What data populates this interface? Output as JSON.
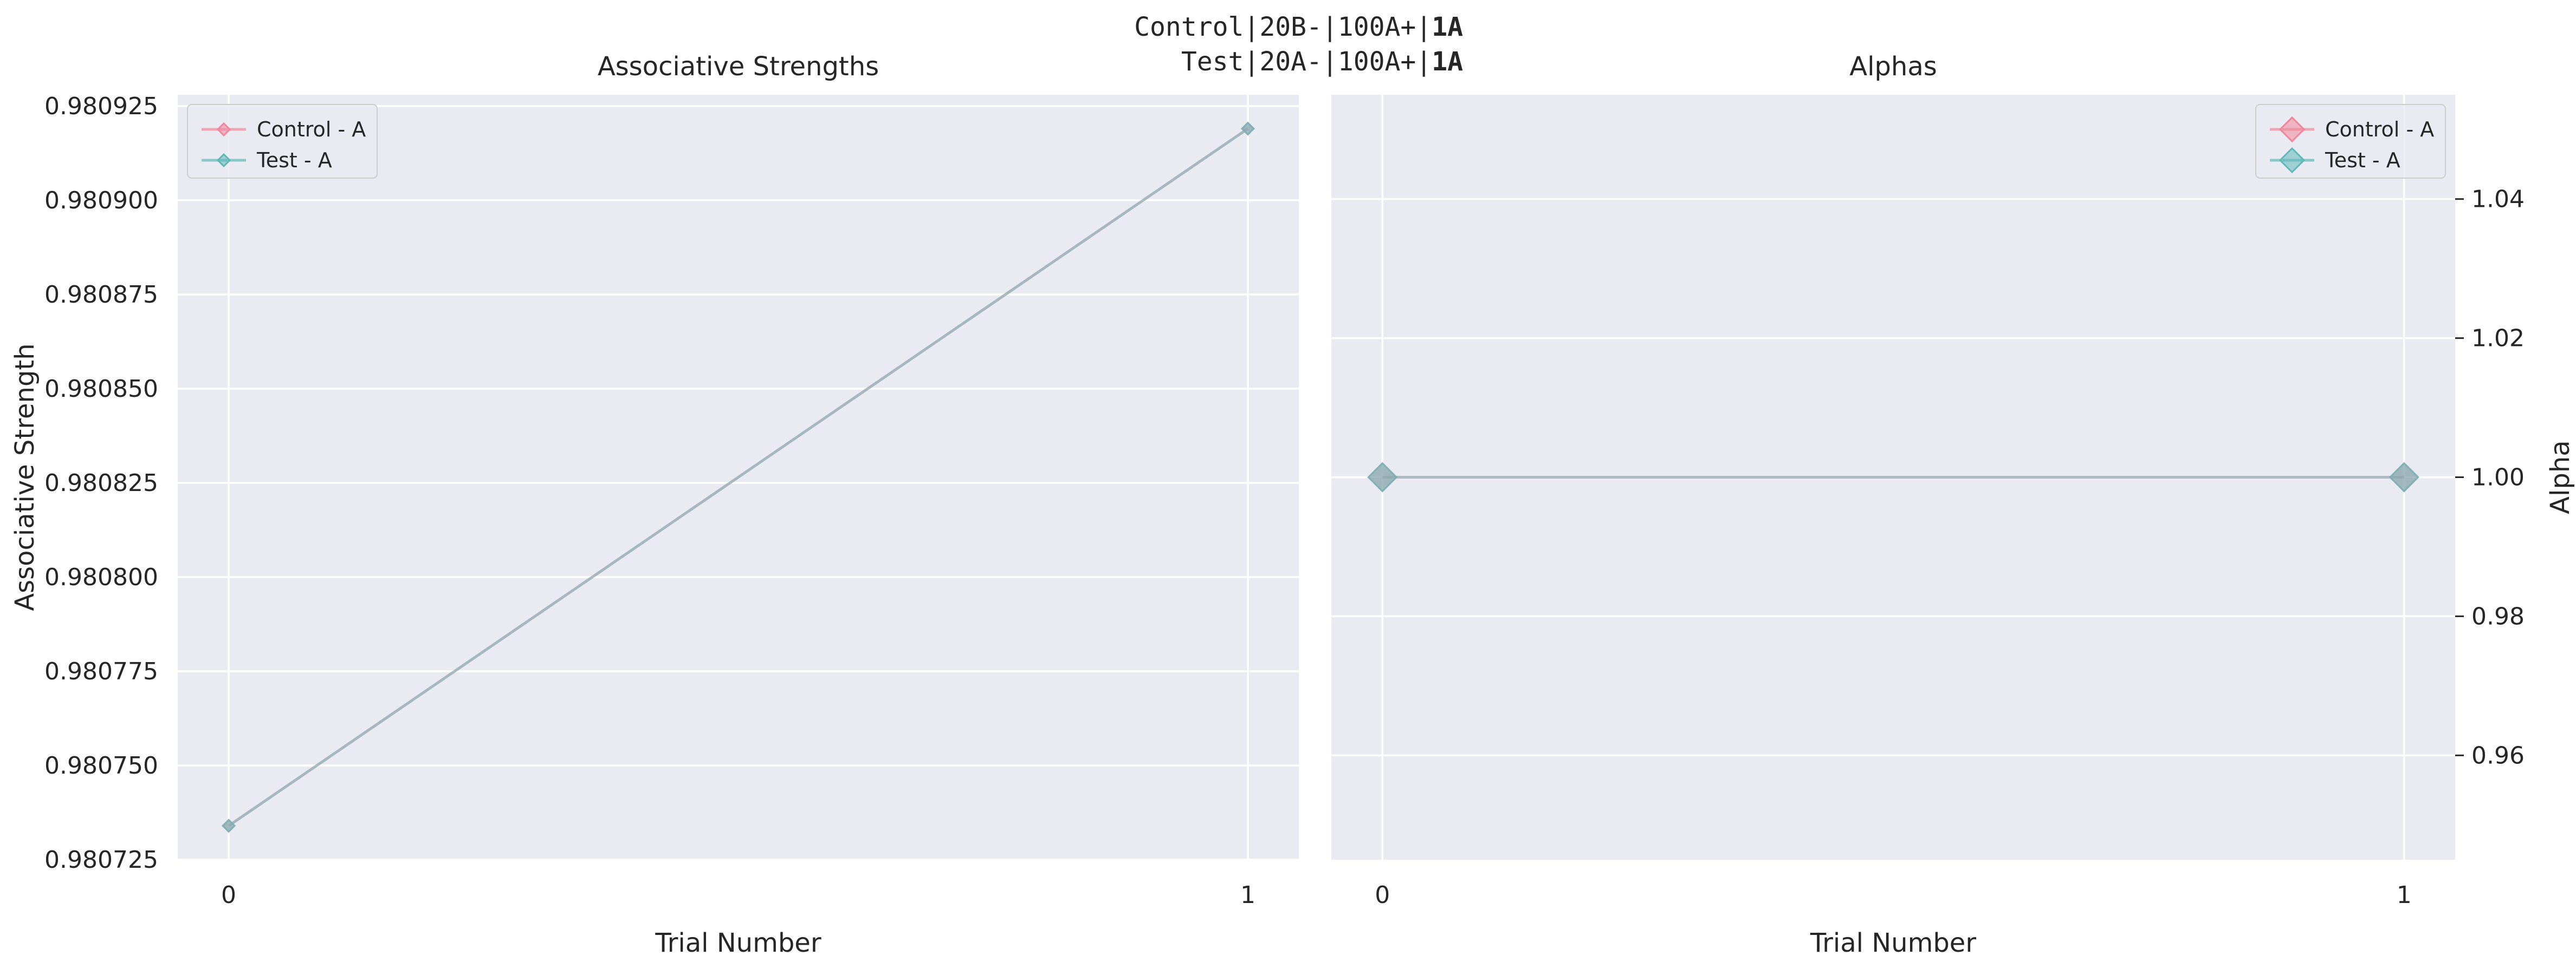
{
  "figure": {
    "suptitle_lines": [
      {
        "text": "Control|20B-|100A+|",
        "bold": "1A"
      },
      {
        "text": "Test|20A-|100A+|",
        "bold": "1A"
      }
    ]
  },
  "chart_data": [
    {
      "type": "line",
      "title": "Associative Strengths",
      "xlabel": "Trial Number",
      "ylabel": "Associative Strength",
      "x": [
        0,
        1
      ],
      "xticks": [
        "0",
        "1"
      ],
      "xlim": [
        -0.05,
        1.05
      ],
      "ylim": [
        0.980725,
        0.980928
      ],
      "yticks": [
        "0.980725",
        "0.980750",
        "0.980775",
        "0.980800",
        "0.980825",
        "0.980850",
        "0.980875",
        "0.980900",
        "0.980925"
      ],
      "yaxis_side": "left",
      "grid": true,
      "legend_position": "upper-left",
      "marker_size": "small",
      "series": [
        {
          "name": "Control - A",
          "values": [
            0.980734,
            0.980919
          ],
          "color": "#f0869a"
        },
        {
          "name": "Test - A",
          "values": [
            0.980734,
            0.980919
          ],
          "color": "#5fb8b8"
        }
      ],
      "overlap_line_color": "#8fa8ad"
    },
    {
      "type": "line",
      "title": "Alphas",
      "xlabel": "Trial Number",
      "ylabel": "Alpha",
      "x": [
        0,
        1
      ],
      "xticks": [
        "0",
        "1"
      ],
      "xlim": [
        -0.05,
        1.05
      ],
      "ylim": [
        0.945,
        1.055
      ],
      "yticks": [
        "0.96",
        "0.98",
        "1.00",
        "1.02",
        "1.04"
      ],
      "yaxis_side": "right",
      "grid": true,
      "legend_position": "upper-right",
      "marker_size": "large",
      "series": [
        {
          "name": "Control - A",
          "values": [
            1.0,
            1.0
          ],
          "color": "#f0869a"
        },
        {
          "name": "Test - A",
          "values": [
            1.0,
            1.0
          ],
          "color": "#5fb8b8"
        }
      ],
      "overlap_line_color": "#8fa8ad"
    }
  ]
}
